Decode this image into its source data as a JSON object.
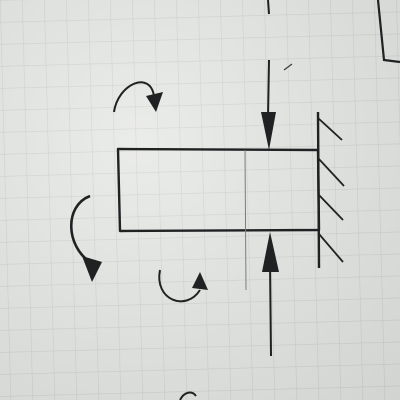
{
  "page": {
    "background": "#e4e6e3",
    "grid_color": "#c9cdc9",
    "ink_color": "#1f2123",
    "shadow_color": "#cfd2cf"
  },
  "figure": {
    "description_elements": [
      "cantilever-beam",
      "fixed-wall-support",
      "top-point-load-arrow",
      "bottom-point-load-arrow",
      "moment-arrow-top-left",
      "moment-arrow-left",
      "moment-arrow-bottom",
      "section-line"
    ]
  }
}
